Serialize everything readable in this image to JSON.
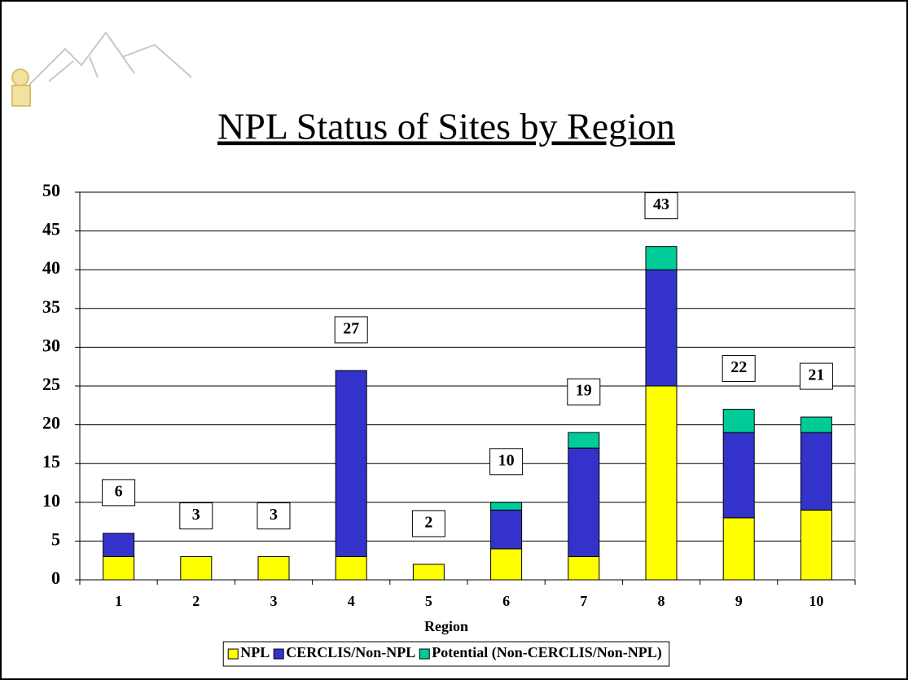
{
  "chart_data": {
    "type": "stacked_bar",
    "title": "NPL Status of Sites by Region",
    "x_label": "Region",
    "categories": [
      "1",
      "2",
      "3",
      "4",
      "5",
      "6",
      "7",
      "8",
      "9",
      "10"
    ],
    "series": [
      {
        "name": "NPL",
        "color": "#ffff00",
        "values": [
          3,
          3,
          3,
          3,
          2,
          4,
          3,
          25,
          8,
          9
        ]
      },
      {
        "name": "CERCLIS/Non-NPL",
        "color": "#3333cc",
        "values": [
          3,
          0,
          0,
          24,
          0,
          5,
          14,
          15,
          11,
          10
        ]
      },
      {
        "name": "Potential (Non-CERCLIS/Non-NPL)",
        "color": "#00cc99",
        "values": [
          0,
          0,
          0,
          0,
          0,
          1,
          2,
          3,
          3,
          2
        ]
      }
    ],
    "totals": [
      6,
      3,
      3,
      27,
      2,
      10,
      19,
      43,
      22,
      21
    ],
    "ylim": [
      0,
      50
    ],
    "yticks": [
      0,
      5,
      10,
      15,
      20,
      25,
      30,
      35,
      40,
      45,
      50
    ],
    "grid": true,
    "legend": "bottom"
  }
}
